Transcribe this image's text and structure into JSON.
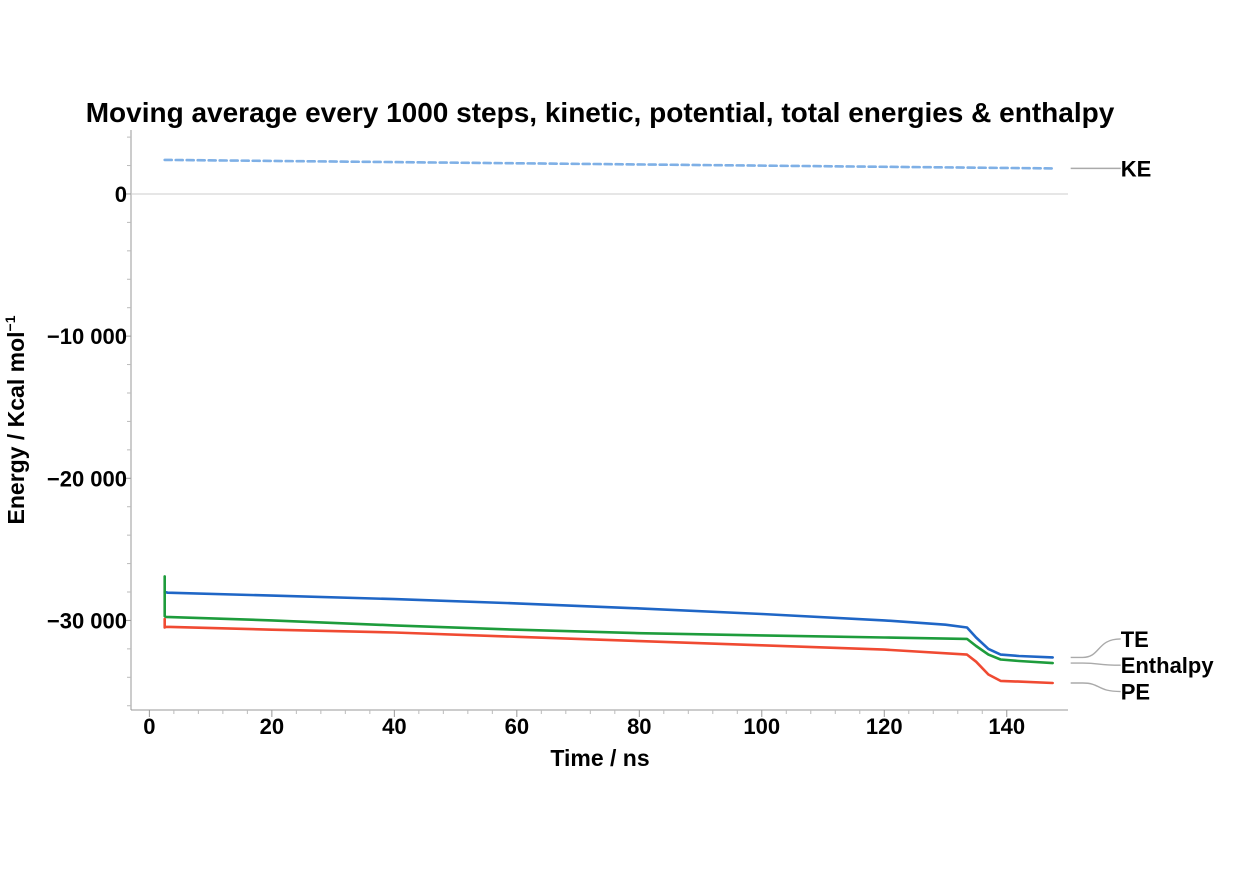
{
  "chart_data": {
    "type": "line",
    "title": "Moving average every 1000 steps, kinetic, potential, total energies & enthalpy",
    "xlabel": "Time / ns",
    "ylabel": "Energy / Kcal mol",
    "ylabel_sup": "−1",
    "xlim": [
      -3,
      150
    ],
    "ylim": [
      -36300,
      4500
    ],
    "x_ticks": [
      0,
      20,
      40,
      60,
      80,
      100,
      120,
      140
    ],
    "x_tick_labels": [
      "0",
      "20",
      "40",
      "60",
      "80",
      "100",
      "120",
      "140"
    ],
    "y_ticks": [
      0,
      -10000,
      -20000,
      -30000
    ],
    "y_tick_labels": [
      "0",
      "−10 000",
      "−20 000",
      "−30 000"
    ],
    "grid": false,
    "zero_line": true,
    "legend": "direct labels at right end of each series",
    "series": [
      {
        "name": "KE",
        "color": "#7fb0e6",
        "dashed": true,
        "x": [
          2.5,
          147.5
        ],
        "y": [
          2400,
          1800
        ]
      },
      {
        "name": "TE",
        "color": "#1f66c6",
        "dashed": false,
        "x": [
          2.5,
          3.0,
          20,
          40,
          60,
          80,
          100,
          120,
          130,
          133.5,
          135,
          137,
          139,
          142,
          147.5
        ],
        "y": [
          -28000,
          -28050,
          -28250,
          -28500,
          -28800,
          -29150,
          -29550,
          -30000,
          -30300,
          -30500,
          -31200,
          -32000,
          -32400,
          -32500,
          -32600
        ]
      },
      {
        "name": "Enthalpy",
        "color": "#1e9c3c",
        "dashed": false,
        "x": [
          2.5,
          2.5,
          2.7,
          20,
          40,
          60,
          80,
          100,
          120,
          133.5,
          135,
          137,
          139,
          142,
          147.5
        ],
        "y": [
          -26900,
          -29700,
          -29750,
          -30000,
          -30350,
          -30650,
          -30900,
          -31050,
          -31200,
          -31300,
          -31800,
          -32400,
          -32750,
          -32850,
          -33000
        ]
      },
      {
        "name": "PE",
        "color": "#f04a32",
        "dashed": false,
        "x": [
          2.5,
          2.5,
          2.7,
          20,
          40,
          60,
          80,
          100,
          120,
          133.5,
          135,
          137,
          139,
          142,
          147.5
        ],
        "y": [
          -29900,
          -30500,
          -30450,
          -30650,
          -30850,
          -31150,
          -31450,
          -31750,
          -32050,
          -32400,
          -32900,
          -33800,
          -34250,
          -34300,
          -34400
        ]
      }
    ],
    "label_positions": {
      "KE": {
        "label_y": 1800
      },
      "TE": {
        "label_y": -31300
      },
      "Enthalpy": {
        "label_y": -33150
      },
      "PE": {
        "label_y": -35000
      }
    }
  }
}
